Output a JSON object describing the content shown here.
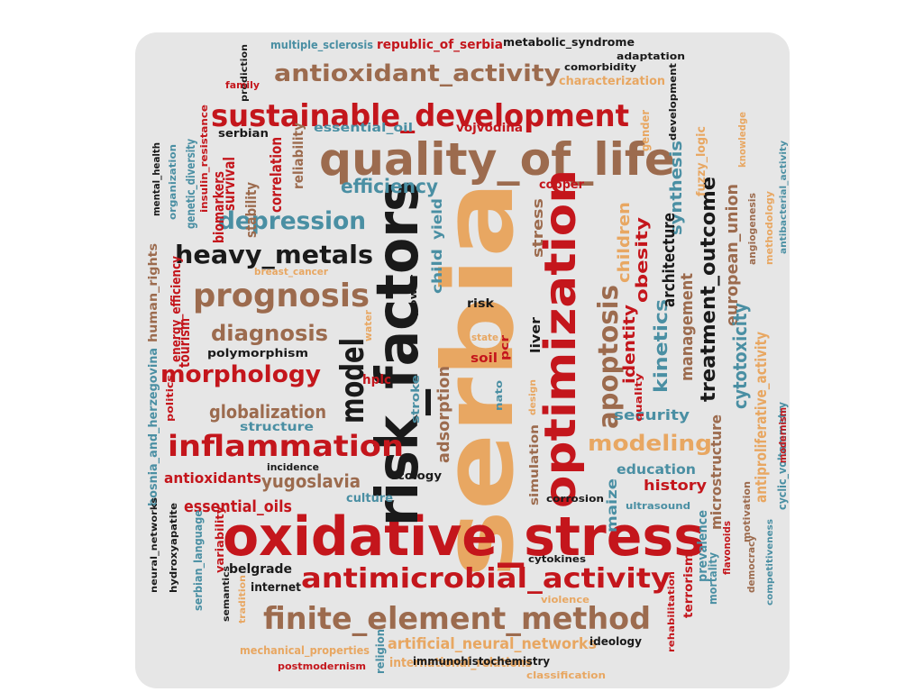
{
  "palette": {
    "red": "#c4161c",
    "brown": "#9c6b4e",
    "tan": "#e8a762",
    "teal": "#4a8fa3",
    "black": "#1a1a1a",
    "panel": "#e6e6e6"
  },
  "words": [
    {
      "text": "serbia",
      "color": "tan",
      "rotation": "vertical"
    },
    {
      "text": "oxidative_stress",
      "color": "red",
      "rotation": "horizontal"
    },
    {
      "text": "risk_factors",
      "color": "black",
      "rotation": "vertical"
    },
    {
      "text": "quality_of_life",
      "color": "brown",
      "rotation": "horizontal"
    },
    {
      "text": "optimization",
      "color": "red",
      "rotation": "vertical"
    },
    {
      "text": "sustainable_development",
      "color": "red",
      "rotation": "horizontal"
    },
    {
      "text": "finite_element_method",
      "color": "brown",
      "rotation": "horizontal"
    },
    {
      "text": "antimicrobial_activity",
      "color": "red",
      "rotation": "horizontal"
    },
    {
      "text": "antioxidant_activity",
      "color": "brown",
      "rotation": "horizontal"
    },
    {
      "text": "inflammation",
      "color": "red",
      "rotation": "horizontal"
    },
    {
      "text": "prognosis",
      "color": "brown",
      "rotation": "horizontal"
    },
    {
      "text": "heavy_metals",
      "color": "black",
      "rotation": "horizontal"
    },
    {
      "text": "depression",
      "color": "teal",
      "rotation": "horizontal"
    },
    {
      "text": "morphology",
      "color": "red",
      "rotation": "horizontal"
    },
    {
      "text": "model",
      "color": "black",
      "rotation": "vertical"
    },
    {
      "text": "apoptosis",
      "color": "brown",
      "rotation": "vertical"
    },
    {
      "text": "modeling",
      "color": "tan",
      "rotation": "horizontal"
    },
    {
      "text": "diagnosis",
      "color": "brown",
      "rotation": "horizontal"
    },
    {
      "text": "efficiency",
      "color": "teal",
      "rotation": "horizontal"
    },
    {
      "text": "globalization",
      "color": "brown",
      "rotation": "horizontal"
    },
    {
      "text": "adsorption",
      "color": "brown",
      "rotation": "vertical"
    },
    {
      "text": "yugoslavia",
      "color": "brown",
      "rotation": "horizontal"
    },
    {
      "text": "essential_oils",
      "color": "red",
      "rotation": "horizontal"
    },
    {
      "text": "antioxidants",
      "color": "red",
      "rotation": "horizontal"
    },
    {
      "text": "treatment_outcome",
      "color": "black",
      "rotation": "vertical"
    },
    {
      "text": "kinetics",
      "color": "teal",
      "rotation": "vertical"
    },
    {
      "text": "management",
      "color": "brown",
      "rotation": "vertical"
    },
    {
      "text": "european_union",
      "color": "brown",
      "rotation": "vertical"
    },
    {
      "text": "cytotoxicity",
      "color": "teal",
      "rotation": "vertical"
    },
    {
      "text": "antiproliferative_activity",
      "color": "tan",
      "rotation": "vertical"
    },
    {
      "text": "obesity",
      "color": "red",
      "rotation": "vertical"
    },
    {
      "text": "identity",
      "color": "red",
      "rotation": "vertical"
    },
    {
      "text": "synthesis",
      "color": "teal",
      "rotation": "vertical"
    },
    {
      "text": "architecture",
      "color": "black",
      "rotation": "vertical"
    },
    {
      "text": "children",
      "color": "tan",
      "rotation": "vertical"
    },
    {
      "text": "security",
      "color": "teal",
      "rotation": "horizontal"
    },
    {
      "text": "history",
      "color": "red",
      "rotation": "horizontal"
    },
    {
      "text": "education",
      "color": "teal",
      "rotation": "horizontal"
    },
    {
      "text": "microstructure",
      "color": "brown",
      "rotation": "vertical"
    },
    {
      "text": "prevalence",
      "color": "teal",
      "rotation": "vertical"
    },
    {
      "text": "artificial_neural_networks",
      "color": "tan",
      "rotation": "horizontal"
    },
    {
      "text": "international_relations",
      "color": "tan",
      "rotation": "horizontal"
    },
    {
      "text": "mechanical_properties",
      "color": "tan",
      "rotation": "horizontal"
    },
    {
      "text": "multiple_sclerosis",
      "color": "teal",
      "rotation": "horizontal"
    },
    {
      "text": "republic_of_serbia",
      "color": "red",
      "rotation": "horizontal"
    },
    {
      "text": "metabolic_syndrome",
      "color": "black",
      "rotation": "horizontal"
    },
    {
      "text": "characterization",
      "color": "tan",
      "rotation": "horizontal"
    },
    {
      "text": "comorbidity",
      "color": "black",
      "rotation": "horizontal"
    },
    {
      "text": "adaptation",
      "color": "black",
      "rotation": "horizontal"
    },
    {
      "text": "essential_oil",
      "color": "teal",
      "rotation": "horizontal"
    },
    {
      "text": "vojvodina",
      "color": "red",
      "rotation": "horizontal"
    },
    {
      "text": "serbian",
      "color": "black",
      "rotation": "horizontal"
    },
    {
      "text": "structure",
      "color": "teal",
      "rotation": "horizontal"
    },
    {
      "text": "incidence",
      "color": "black",
      "rotation": "horizontal"
    },
    {
      "text": "ecology",
      "color": "black",
      "rotation": "horizontal"
    },
    {
      "text": "culture",
      "color": "teal",
      "rotation": "horizontal"
    },
    {
      "text": "polymorphism",
      "color": "black",
      "rotation": "horizontal"
    },
    {
      "text": "belgrade",
      "color": "black",
      "rotation": "horizontal"
    },
    {
      "text": "internet",
      "color": "black",
      "rotation": "horizontal"
    },
    {
      "text": "tourism",
      "color": "red",
      "rotation": "vertical"
    },
    {
      "text": "hplc",
      "color": "red",
      "rotation": "horizontal"
    },
    {
      "text": "soil",
      "color": "red",
      "rotation": "horizontal"
    },
    {
      "text": "risk",
      "color": "black",
      "rotation": "horizontal"
    },
    {
      "text": "liver",
      "color": "black",
      "rotation": "vertical"
    },
    {
      "text": "pcr",
      "color": "red",
      "rotation": "vertical"
    },
    {
      "text": "copper",
      "color": "red",
      "rotation": "horizontal"
    },
    {
      "text": "stress",
      "color": "brown",
      "rotation": "vertical"
    },
    {
      "text": "maize",
      "color": "teal",
      "rotation": "vertical"
    },
    {
      "text": "child",
      "color": "teal",
      "rotation": "vertical"
    },
    {
      "text": "yield",
      "color": "teal",
      "rotation": "vertical"
    },
    {
      "text": "stroke",
      "color": "teal",
      "rotation": "vertical"
    },
    {
      "text": "power",
      "color": "black",
      "rotation": "vertical"
    },
    {
      "text": "nato",
      "color": "teal",
      "rotation": "vertical"
    },
    {
      "text": "state",
      "color": "tan",
      "rotation": "horizontal"
    },
    {
      "text": "water",
      "color": "tan",
      "rotation": "vertical"
    },
    {
      "text": "design",
      "color": "tan",
      "rotation": "vertical"
    },
    {
      "text": "quality",
      "color": "red",
      "rotation": "vertical"
    },
    {
      "text": "simulation",
      "color": "brown",
      "rotation": "vertical"
    },
    {
      "text": "corrosion",
      "color": "black",
      "rotation": "horizontal"
    },
    {
      "text": "cytokines",
      "color": "black",
      "rotation": "horizontal"
    },
    {
      "text": "violence",
      "color": "tan",
      "rotation": "horizontal"
    },
    {
      "text": "ultrasound",
      "color": "teal",
      "rotation": "horizontal"
    },
    {
      "text": "ideology",
      "color": "black",
      "rotation": "horizontal"
    },
    {
      "text": "immunohistochemistry",
      "color": "black",
      "rotation": "horizontal"
    },
    {
      "text": "classification",
      "color": "tan",
      "rotation": "horizontal"
    },
    {
      "text": "postmodernism",
      "color": "red",
      "rotation": "horizontal"
    },
    {
      "text": "religion",
      "color": "teal",
      "rotation": "vertical"
    },
    {
      "text": "terrorism",
      "color": "red",
      "rotation": "vertical"
    },
    {
      "text": "rehabilitation",
      "color": "red",
      "rotation": "vertical"
    },
    {
      "text": "mortality",
      "color": "teal",
      "rotation": "vertical"
    },
    {
      "text": "flavonoids",
      "color": "red",
      "rotation": "vertical"
    },
    {
      "text": "democracy",
      "color": "brown",
      "rotation": "vertical"
    },
    {
      "text": "motivation",
      "color": "brown",
      "rotation": "vertical"
    },
    {
      "text": "competitiveness",
      "color": "teal",
      "rotation": "vertical"
    },
    {
      "text": "cyclic_voltammetry",
      "color": "teal",
      "rotation": "vertical"
    },
    {
      "text": "modernism",
      "color": "red",
      "rotation": "vertical"
    },
    {
      "text": "methodology",
      "color": "tan",
      "rotation": "vertical"
    },
    {
      "text": "angiogenesis",
      "color": "brown",
      "rotation": "vertical"
    },
    {
      "text": "knowledge",
      "color": "tan",
      "rotation": "vertical"
    },
    {
      "text": "antibacterial_activity",
      "color": "teal",
      "rotation": "vertical"
    },
    {
      "text": "fuzzy_logic",
      "color": "tan",
      "rotation": "vertical"
    },
    {
      "text": "gender",
      "color": "tan",
      "rotation": "vertical"
    },
    {
      "text": "development",
      "color": "black",
      "rotation": "vertical"
    },
    {
      "text": "prediction",
      "color": "black",
      "rotation": "vertical"
    },
    {
      "text": "family",
      "color": "red",
      "rotation": "horizontal"
    },
    {
      "text": "insulin_resistance",
      "color": "red",
      "rotation": "vertical"
    },
    {
      "text": "correlation",
      "color": "red",
      "rotation": "vertical"
    },
    {
      "text": "reliability",
      "color": "brown",
      "rotation": "vertical"
    },
    {
      "text": "survival",
      "color": "red",
      "rotation": "vertical"
    },
    {
      "text": "stability",
      "color": "brown",
      "rotation": "vertical"
    },
    {
      "text": "biomarkers",
      "color": "red",
      "rotation": "vertical"
    },
    {
      "text": "genetic_diversity",
      "color": "teal",
      "rotation": "vertical"
    },
    {
      "text": "organization",
      "color": "teal",
      "rotation": "vertical"
    },
    {
      "text": "mental_health",
      "color": "black",
      "rotation": "vertical"
    },
    {
      "text": "human_rights",
      "color": "brown",
      "rotation": "vertical"
    },
    {
      "text": "energy_efficiency",
      "color": "red",
      "rotation": "vertical"
    },
    {
      "text": "breast_cancer",
      "color": "tan",
      "rotation": "horizontal"
    },
    {
      "text": "politics",
      "color": "red",
      "rotation": "vertical"
    },
    {
      "text": "bosnia_and_herzegovina",
      "color": "teal",
      "rotation": "vertical"
    },
    {
      "text": "neural_networks",
      "color": "black",
      "rotation": "vertical"
    },
    {
      "text": "hydroxyapatite",
      "color": "black",
      "rotation": "vertical"
    },
    {
      "text": "serbian_language",
      "color": "teal",
      "rotation": "vertical"
    },
    {
      "text": "variability",
      "color": "red",
      "rotation": "vertical"
    },
    {
      "text": "semantics",
      "color": "black",
      "rotation": "vertical"
    },
    {
      "text": "tradition",
      "color": "tan",
      "rotation": "vertical"
    }
  ]
}
